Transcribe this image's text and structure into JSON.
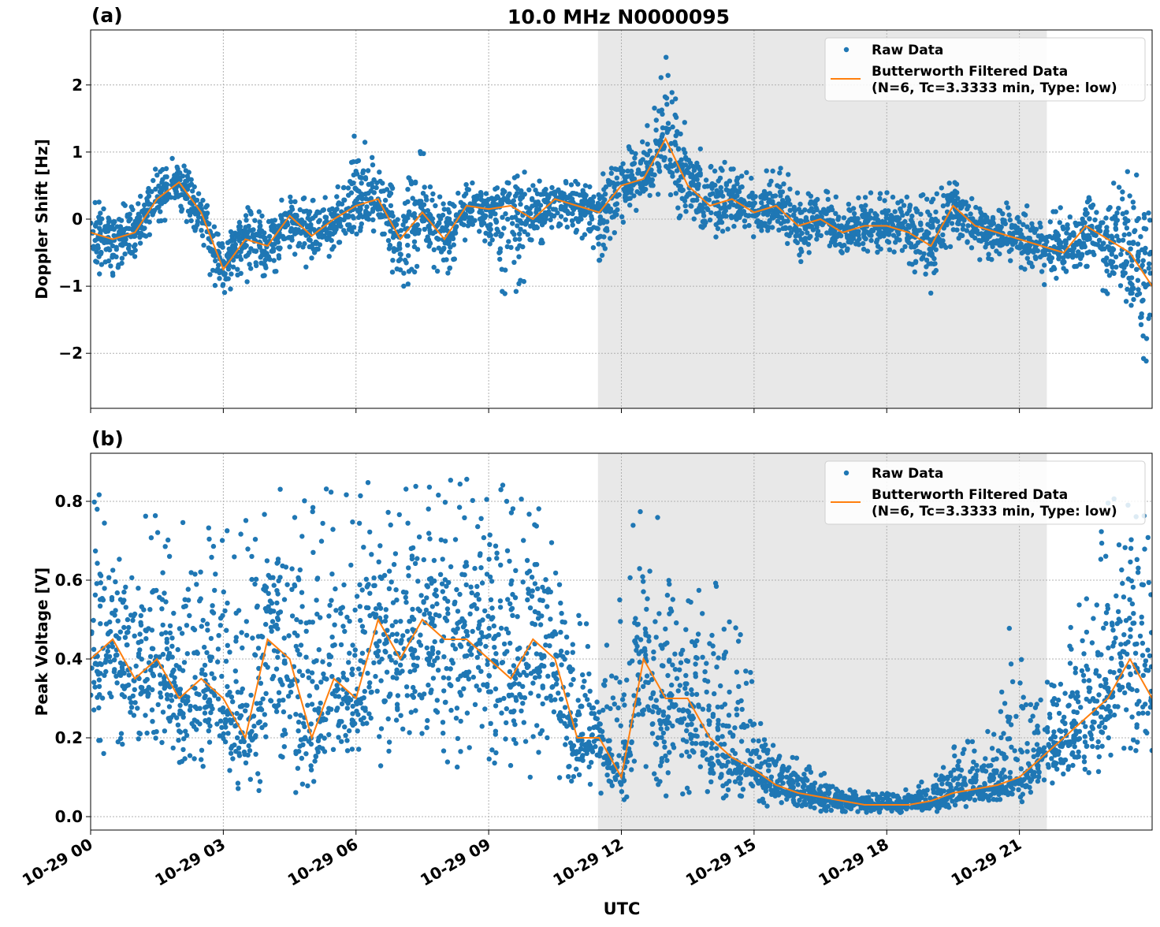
{
  "chart_data": {
    "title": "10.0 MHz N0000095",
    "xlabel": "UTC",
    "x_tick_labels": [
      "10-29 00",
      "10-29 03",
      "10-29 06",
      "10-29 09",
      "10-29 12",
      "10-29 15",
      "10-29 18",
      "10-29 21"
    ],
    "x_tick_hours": [
      0,
      3,
      6,
      9,
      12,
      15,
      18,
      21
    ],
    "xlim_hours": [
      0,
      24
    ],
    "shaded_region_hours": [
      11.47,
      21.62
    ],
    "shaded_color": "#e8e8e8",
    "grid": true,
    "legend_placement": "upper right",
    "legend": [
      "Raw Data",
      "Butterworth Filtered Data\n(N=6, Tc=3.3333 min, Type: low)"
    ],
    "legend_lines": [
      "Raw Data",
      "Butterworth Filtered Data",
      "(N=6, Tc=3.3333 min, Type: low)"
    ],
    "colors": {
      "raw": "#1f77b4",
      "filtered": "#ff7f0e"
    },
    "x_hours": [
      0,
      0.5,
      1,
      1.5,
      2,
      2.5,
      3,
      3.5,
      4,
      4.5,
      5,
      5.5,
      6,
      6.5,
      7,
      7.5,
      8,
      8.5,
      9,
      9.5,
      10,
      10.5,
      11,
      11.5,
      12,
      12.5,
      13,
      13.5,
      14,
      14.5,
      15,
      15.5,
      16,
      16.5,
      17,
      17.5,
      18,
      18.5,
      19,
      19.5,
      20,
      20.5,
      21,
      21.5,
      22,
      22.5,
      23,
      23.5,
      24
    ],
    "panels": [
      {
        "label": "(a)",
        "type": "scatter+line",
        "ylabel": "Doppler Shift [Hz]",
        "ylim": [
          -2.82,
          2.82
        ],
        "y_ticks": [
          -2,
          -1,
          0,
          1,
          2
        ],
        "y_tick_labels": [
          "−2",
          "−1",
          "0",
          "1",
          "2"
        ],
        "filtered": [
          -0.2,
          -0.3,
          -0.2,
          0.3,
          0.55,
          0.1,
          -0.75,
          -0.3,
          -0.4,
          0.05,
          -0.25,
          0.0,
          0.2,
          0.3,
          -0.3,
          0.1,
          -0.3,
          0.2,
          0.15,
          0.2,
          0.0,
          0.3,
          0.2,
          0.1,
          0.5,
          0.6,
          1.2,
          0.5,
          0.2,
          0.3,
          0.1,
          0.2,
          -0.1,
          0.0,
          -0.2,
          -0.1,
          -0.1,
          -0.2,
          -0.4,
          0.2,
          -0.1,
          -0.2,
          -0.3,
          -0.4,
          -0.5,
          -0.1,
          -0.3,
          -0.5,
          -1.0
        ],
        "raw_low": [
          -0.8,
          -0.9,
          -0.6,
          -0.1,
          0.1,
          -0.5,
          -1.5,
          -1.2,
          -1.0,
          -0.5,
          -0.8,
          -0.5,
          -0.3,
          -0.3,
          -1.4,
          -0.5,
          -1.1,
          -0.3,
          -0.5,
          -1.5,
          -0.6,
          -0.2,
          -0.3,
          -0.7,
          -0.1,
          0.2,
          0.3,
          -0.2,
          -0.3,
          -0.2,
          -0.5,
          -0.3,
          -0.7,
          -0.5,
          -0.6,
          -0.5,
          -0.5,
          -0.7,
          -1.2,
          -0.3,
          -0.6,
          -0.7,
          -0.7,
          -1.0,
          -0.9,
          -0.7,
          -1.2,
          -1.5,
          -2.5
        ],
        "raw_high": [
          0.4,
          0.2,
          0.3,
          0.8,
          1.0,
          0.4,
          -0.2,
          0.3,
          0.2,
          0.4,
          0.3,
          0.5,
          1.4,
          0.9,
          0.4,
          1.1,
          0.3,
          0.6,
          0.4,
          0.6,
          1.0,
          0.6,
          0.6,
          0.6,
          1.2,
          1.3,
          2.5,
          1.5,
          0.8,
          0.9,
          0.6,
          0.9,
          0.5,
          0.5,
          0.3,
          0.4,
          0.4,
          0.4,
          0.4,
          0.7,
          0.4,
          0.3,
          0.5,
          0.0,
          0.3,
          0.6,
          0.4,
          1.0,
          0.0
        ]
      },
      {
        "label": "(b)",
        "type": "scatter+line",
        "ylabel": "Peak Voltage [V]",
        "ylim": [
          -0.034,
          0.922
        ],
        "y_ticks": [
          0,
          0.2,
          0.4,
          0.6,
          0.8
        ],
        "y_tick_labels": [
          "0.0",
          "0.2",
          "0.4",
          "0.6",
          "0.8"
        ],
        "filtered": [
          0.4,
          0.45,
          0.35,
          0.4,
          0.3,
          0.35,
          0.3,
          0.2,
          0.45,
          0.4,
          0.2,
          0.35,
          0.3,
          0.5,
          0.4,
          0.5,
          0.45,
          0.45,
          0.4,
          0.35,
          0.45,
          0.4,
          0.2,
          0.2,
          0.1,
          0.4,
          0.3,
          0.3,
          0.2,
          0.15,
          0.12,
          0.08,
          0.06,
          0.05,
          0.04,
          0.03,
          0.03,
          0.03,
          0.04,
          0.06,
          0.07,
          0.08,
          0.1,
          0.15,
          0.2,
          0.25,
          0.3,
          0.4,
          0.3
        ],
        "raw_low": [
          0.15,
          0.15,
          0.15,
          0.15,
          0.12,
          0.12,
          0.08,
          0.05,
          0.06,
          0.06,
          0.05,
          0.06,
          0.08,
          0.1,
          0.1,
          0.12,
          0.12,
          0.12,
          0.12,
          0.1,
          0.1,
          0.1,
          0.05,
          0.06,
          0.04,
          0.05,
          0.05,
          0.05,
          0.05,
          0.04,
          0.03,
          0.02,
          0.02,
          0.01,
          0.01,
          0.01,
          0.01,
          0.01,
          0.01,
          0.02,
          0.02,
          0.02,
          0.03,
          0.05,
          0.08,
          0.1,
          0.12,
          0.15,
          0.15
        ],
        "raw_high": [
          0.85,
          0.8,
          0.82,
          0.8,
          0.75,
          0.87,
          0.8,
          0.78,
          0.86,
          0.86,
          0.8,
          0.86,
          0.86,
          0.86,
          0.86,
          0.86,
          0.86,
          0.86,
          0.86,
          0.87,
          0.85,
          0.8,
          0.7,
          0.4,
          0.7,
          0.85,
          0.8,
          0.7,
          0.62,
          0.55,
          0.35,
          0.25,
          0.15,
          0.12,
          0.08,
          0.07,
          0.06,
          0.08,
          0.1,
          0.18,
          0.2,
          0.25,
          0.69,
          0.32,
          0.45,
          0.6,
          0.8,
          0.85,
          0.75
        ]
      }
    ]
  }
}
